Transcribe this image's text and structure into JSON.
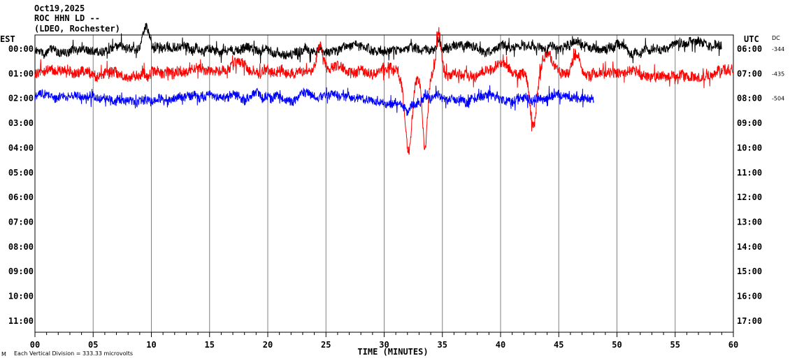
{
  "chart_data": {
    "type": "line",
    "title_lines": [
      "Oct19,2025",
      "ROC HHN LD --",
      "(LDEO, Rochester)"
    ],
    "xlabel": "TIME (MINUTES)",
    "xlim": [
      0,
      60
    ],
    "x_ticks": [
      "00",
      "05",
      "10",
      "15",
      "20",
      "25",
      "30",
      "35",
      "40",
      "45",
      "50",
      "55",
      "60"
    ],
    "left_axis_title": "EST",
    "right_axis_title": "UTC",
    "dc_title": "DC",
    "left_labels": [
      "00:00",
      "01:00",
      "02:00",
      "03:00",
      "04:00",
      "05:00",
      "06:00",
      "07:00",
      "08:00",
      "09:00",
      "10:00",
      "11:00"
    ],
    "right_labels": [
      "06:00",
      "07:00",
      "08:00",
      "09:00",
      "10:00",
      "11:00",
      "12:00",
      "13:00",
      "14:00",
      "15:00",
      "16:00",
      "17:00"
    ],
    "footer_mark": "M",
    "scale_note": "Each Vertical Division =  333.33 microvolts",
    "grid": true,
    "series": [
      {
        "name": "row 00:00 EST",
        "row": 0,
        "color": "#000000",
        "dc": "-344",
        "end_minute": 59,
        "noise_div": 0.18,
        "features": [
          {
            "minute": 9.5,
            "amp_div": -0.9,
            "width": 0.4
          },
          {
            "minute": 23.2,
            "amp_div": -0.3,
            "width": 0.3
          },
          {
            "minute": 34.7,
            "amp_div": -0.4,
            "width": 0.2
          }
        ]
      },
      {
        "name": "row 01:00 EST",
        "row": 1,
        "color": "#ff0000",
        "dc": "-435",
        "end_minute": 60,
        "noise_div": 0.2,
        "features": [
          {
            "minute": 17.5,
            "amp_div": -0.4,
            "width": 0.8
          },
          {
            "minute": 24.5,
            "amp_div": -1.0,
            "width": 0.4
          },
          {
            "minute": 32.1,
            "amp_div": 3.2,
            "width": 0.45
          },
          {
            "minute": 33.5,
            "amp_div": 3.0,
            "width": 0.3
          },
          {
            "minute": 34.7,
            "amp_div": -1.8,
            "width": 0.3
          },
          {
            "minute": 40.0,
            "amp_div": -0.5,
            "width": 0.8
          },
          {
            "minute": 42.8,
            "amp_div": 2.1,
            "width": 0.4
          },
          {
            "minute": 44.0,
            "amp_div": -0.8,
            "width": 0.6
          },
          {
            "minute": 46.5,
            "amp_div": -0.8,
            "width": 0.5
          }
        ]
      },
      {
        "name": "row 02:00 EST",
        "row": 2,
        "color": "#0000ff",
        "dc": "-504",
        "end_minute": 48,
        "noise_div": 0.17,
        "features": [
          {
            "minute": 32.0,
            "amp_div": 0.4,
            "width": 0.4
          }
        ]
      }
    ]
  }
}
